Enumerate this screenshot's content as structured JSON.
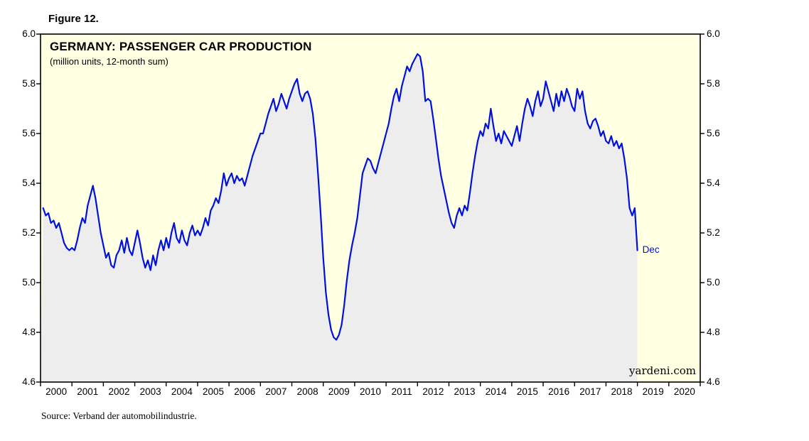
{
  "figure_label": "Figure 12.",
  "title": "GERMANY: PASSENGER CAR PRODUCTION",
  "subtitle": "(million units, 12-month sum)",
  "watermark": "yardeni.com",
  "end_label": "Dec",
  "source": "Source: Verband der automobilindustrie.",
  "colors": {
    "line": "#0010DD",
    "plot_bg": "#FFFFE1",
    "area_fill": "#EDEDED",
    "axis": "#000000",
    "end_label_color": "#0010DD"
  },
  "chart_data": {
    "type": "line",
    "title": "GERMANY: PASSENGER CAR PRODUCTION",
    "subtitle": "(million units, 12-month sum)",
    "ylabel": "million units, 12-month sum",
    "ylim": [
      4.6,
      6.0
    ],
    "ytick_labels": [
      "6.0",
      "5.8",
      "5.6",
      "5.4",
      "5.2",
      "5.0",
      "4.8",
      "4.6"
    ],
    "x_start_year": 2000,
    "x_end_year": 2020,
    "xtick_labels": [
      "2000",
      "2001",
      "2002",
      "2003",
      "2004",
      "2005",
      "2006",
      "2007",
      "2008",
      "2009",
      "2010",
      "2011",
      "2012",
      "2013",
      "2014",
      "2015",
      "2016",
      "2017",
      "2018",
      "2019",
      "2020"
    ],
    "grid": false,
    "legend_position": "none",
    "series": [
      {
        "name": "Germany passenger car production, 12-month sum (million units)",
        "start": "2000-01",
        "end": "2018-12",
        "frequency": "monthly",
        "last_point_label": "Dec",
        "values": [
          5.3,
          5.27,
          5.28,
          5.24,
          5.25,
          5.22,
          5.24,
          5.2,
          5.16,
          5.14,
          5.13,
          5.14,
          5.13,
          5.17,
          5.22,
          5.26,
          5.24,
          5.31,
          5.35,
          5.39,
          5.34,
          5.27,
          5.2,
          5.15,
          5.1,
          5.12,
          5.07,
          5.06,
          5.11,
          5.13,
          5.17,
          5.12,
          5.18,
          5.13,
          5.11,
          5.16,
          5.21,
          5.16,
          5.1,
          5.06,
          5.09,
          5.05,
          5.11,
          5.07,
          5.13,
          5.17,
          5.13,
          5.18,
          5.14,
          5.2,
          5.24,
          5.18,
          5.16,
          5.21,
          5.17,
          5.15,
          5.2,
          5.23,
          5.19,
          5.21,
          5.19,
          5.22,
          5.26,
          5.23,
          5.29,
          5.31,
          5.34,
          5.32,
          5.37,
          5.44,
          5.39,
          5.42,
          5.44,
          5.4,
          5.43,
          5.41,
          5.42,
          5.39,
          5.43,
          5.47,
          5.51,
          5.54,
          5.57,
          5.6,
          5.6,
          5.64,
          5.68,
          5.71,
          5.74,
          5.69,
          5.72,
          5.76,
          5.73,
          5.7,
          5.74,
          5.77,
          5.8,
          5.82,
          5.76,
          5.73,
          5.76,
          5.77,
          5.74,
          5.68,
          5.58,
          5.44,
          5.28,
          5.1,
          4.96,
          4.87,
          4.81,
          4.78,
          4.77,
          4.79,
          4.83,
          4.91,
          5.01,
          5.09,
          5.15,
          5.2,
          5.26,
          5.35,
          5.44,
          5.47,
          5.5,
          5.49,
          5.46,
          5.44,
          5.48,
          5.52,
          5.56,
          5.6,
          5.64,
          5.7,
          5.75,
          5.78,
          5.73,
          5.79,
          5.83,
          5.87,
          5.85,
          5.88,
          5.9,
          5.92,
          5.91,
          5.85,
          5.73,
          5.74,
          5.73,
          5.66,
          5.58,
          5.5,
          5.43,
          5.38,
          5.33,
          5.28,
          5.24,
          5.22,
          5.27,
          5.3,
          5.27,
          5.31,
          5.29,
          5.36,
          5.44,
          5.51,
          5.57,
          5.61,
          5.59,
          5.64,
          5.62,
          5.7,
          5.63,
          5.57,
          5.6,
          5.56,
          5.61,
          5.59,
          5.57,
          5.55,
          5.59,
          5.63,
          5.57,
          5.64,
          5.7,
          5.74,
          5.71,
          5.67,
          5.73,
          5.77,
          5.71,
          5.74,
          5.81,
          5.77,
          5.73,
          5.69,
          5.76,
          5.71,
          5.77,
          5.73,
          5.78,
          5.75,
          5.71,
          5.69,
          5.78,
          5.74,
          5.77,
          5.69,
          5.64,
          5.62,
          5.65,
          5.66,
          5.63,
          5.59,
          5.61,
          5.57,
          5.56,
          5.59,
          5.55,
          5.57,
          5.54,
          5.56,
          5.5,
          5.42,
          5.3,
          5.27,
          5.3,
          5.13
        ]
      }
    ]
  }
}
